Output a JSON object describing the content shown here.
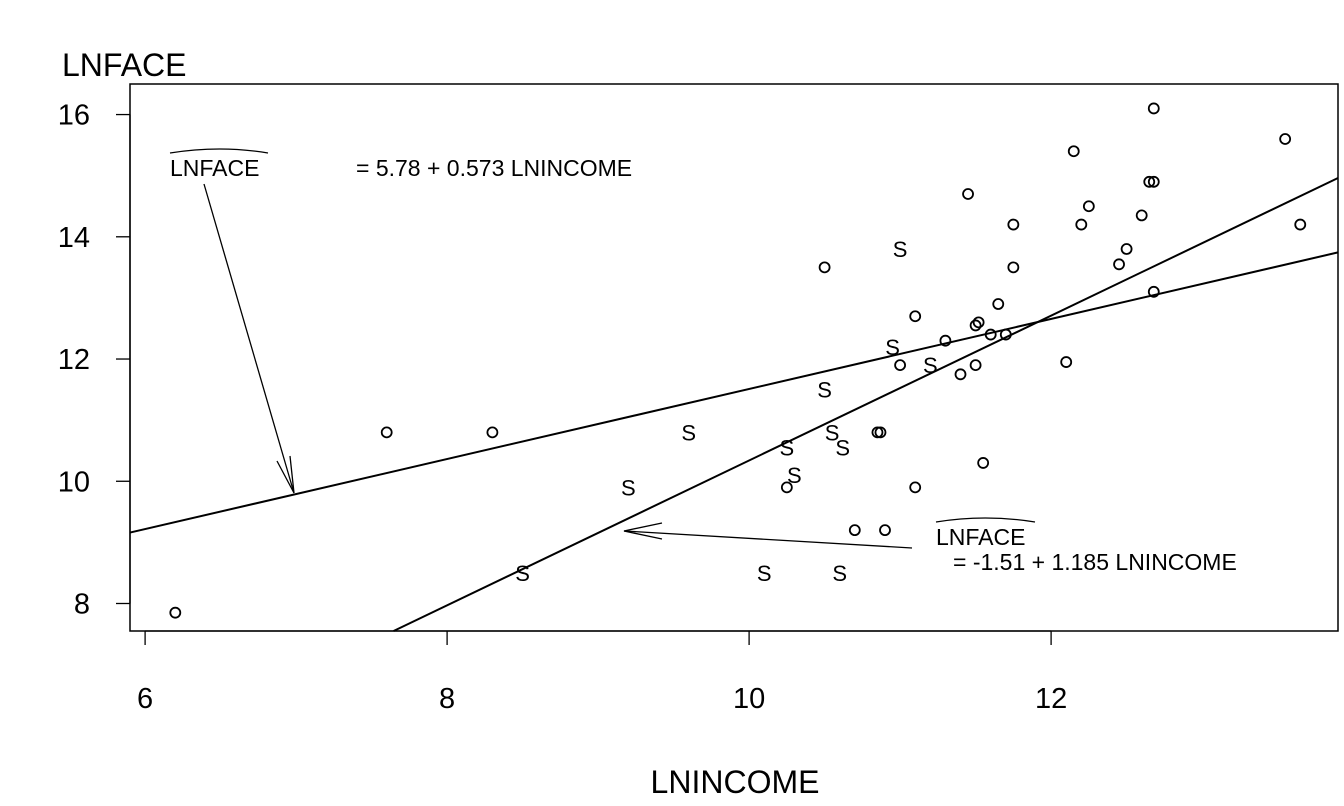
{
  "chart_data": {
    "type": "scatter",
    "title": "",
    "xlabel": "LNINCOME",
    "ylabel": "LNFACE",
    "xlim": [
      5.9,
      13.9
    ],
    "ylim": [
      7.55,
      16.5
    ],
    "x_ticks": [
      6,
      8,
      10,
      12
    ],
    "y_ticks": [
      8,
      10,
      12,
      14,
      16
    ],
    "grid": false,
    "series": [
      {
        "marker": "o",
        "points": [
          [
            6.2,
            7.85
          ],
          [
            7.6,
            10.8
          ],
          [
            8.3,
            10.8
          ],
          [
            10.25,
            9.9
          ],
          [
            10.5,
            13.5
          ],
          [
            10.7,
            9.2
          ],
          [
            10.85,
            10.8
          ],
          [
            10.87,
            10.8
          ],
          [
            10.9,
            9.2
          ],
          [
            11.0,
            11.9
          ],
          [
            11.1,
            12.7
          ],
          [
            11.1,
            9.9
          ],
          [
            11.3,
            12.3
          ],
          [
            11.4,
            11.75
          ],
          [
            11.45,
            14.7
          ],
          [
            11.5,
            12.55
          ],
          [
            11.5,
            11.9
          ],
          [
            11.52,
            12.6
          ],
          [
            11.55,
            10.3
          ],
          [
            11.6,
            12.4
          ],
          [
            11.65,
            12.9
          ],
          [
            11.7,
            12.4
          ],
          [
            11.75,
            14.2
          ],
          [
            11.75,
            13.5
          ],
          [
            12.1,
            11.95
          ],
          [
            12.15,
            15.4
          ],
          [
            12.2,
            14.2
          ],
          [
            12.25,
            14.5
          ],
          [
            12.45,
            13.55
          ],
          [
            12.5,
            13.8
          ],
          [
            12.6,
            14.35
          ],
          [
            12.65,
            14.9
          ],
          [
            12.68,
            14.9
          ],
          [
            12.68,
            16.1
          ],
          [
            12.68,
            13.1
          ],
          [
            13.55,
            15.6
          ],
          [
            13.65,
            14.2
          ]
        ]
      },
      {
        "marker": "S",
        "points": [
          [
            8.5,
            8.5
          ],
          [
            9.2,
            9.9
          ],
          [
            9.6,
            10.8
          ],
          [
            10.1,
            8.5
          ],
          [
            10.25,
            10.55
          ],
          [
            10.3,
            10.1
          ],
          [
            10.5,
            11.5
          ],
          [
            10.55,
            10.8
          ],
          [
            10.6,
            8.5
          ],
          [
            10.62,
            10.55
          ],
          [
            10.95,
            12.2
          ],
          [
            11.0,
            13.8
          ],
          [
            11.2,
            11.9
          ]
        ]
      }
    ],
    "lines": [
      {
        "intercept": 5.78,
        "slope": 0.573
      },
      {
        "intercept": -1.51,
        "slope": 1.185
      }
    ],
    "annotations": [
      {
        "lhs": "LNFACE",
        "rhs": "= 5.78 + 0.573 LNINCOME",
        "arrow_to": [
          7.0,
          9.8
        ]
      },
      {
        "lhs": "LNFACE",
        "rhs": "= -1.51 + 1.185 LNINCOME",
        "arrow_to": [
          9.2,
          9.2
        ]
      }
    ]
  }
}
